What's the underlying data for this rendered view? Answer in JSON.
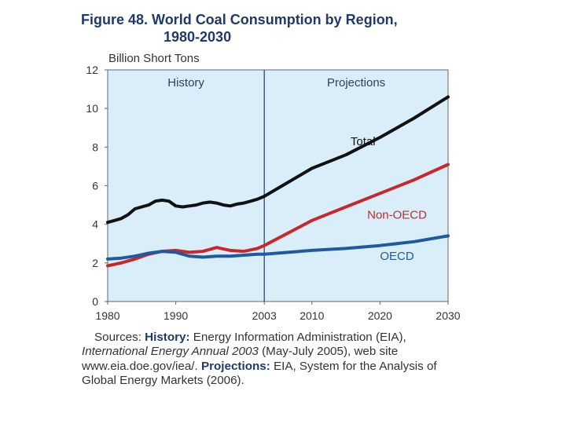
{
  "title_line1": "Figure 48.  World Coal Consumption by Region,",
  "title_line2": "1980-2030",
  "sources": {
    "label": "Sources:",
    "history_label": "History:",
    "history_text": "Energy Information Administration (EIA),",
    "publication": "International Energy Annual 2003",
    "publication_rest": "(May-July 2005), web site",
    "website": "www.eia.doe.gov/iea/.",
    "projections_label": "Projections:",
    "projections_text": "EIA, System for the Analysis of Global Energy Markets (2006)."
  },
  "chart_data": {
    "type": "line",
    "title": "World Coal Consumption by Region, 1980-2030",
    "ylabel": "Billion Short Tons",
    "xlabel": "",
    "xlim": [
      1980,
      2030
    ],
    "ylim": [
      0,
      12
    ],
    "yticks": [
      0,
      2,
      4,
      6,
      8,
      10,
      12
    ],
    "xticks": [
      1980,
      1990,
      2003,
      2010,
      2020,
      2030
    ],
    "divider_year": 2003,
    "regions": [
      {
        "label": "History",
        "from": 1980,
        "to": 2003
      },
      {
        "label": "Projections",
        "from": 2003,
        "to": 2030
      }
    ],
    "colors": {
      "background": "#d9eef9",
      "Total": "#111111",
      "Non-OECD": "#c8282b",
      "OECD": "#1f5aa0"
    },
    "series": [
      {
        "name": "Total",
        "x": [
          1980,
          1981,
          1982,
          1983,
          1984,
          1985,
          1986,
          1987,
          1988,
          1989,
          1990,
          1991,
          1992,
          1993,
          1994,
          1995,
          1996,
          1997,
          1998,
          1999,
          2000,
          2001,
          2002,
          2003,
          2010,
          2015,
          2020,
          2025,
          2030
        ],
        "values": [
          4.1,
          4.2,
          4.3,
          4.5,
          4.8,
          4.9,
          5.0,
          5.2,
          5.25,
          5.2,
          4.95,
          4.9,
          4.95,
          5.0,
          5.1,
          5.15,
          5.1,
          5.0,
          4.95,
          5.05,
          5.1,
          5.2,
          5.3,
          5.45,
          6.9,
          7.6,
          8.5,
          9.5,
          10.6
        ]
      },
      {
        "name": "Non-OECD",
        "x": [
          1980,
          1982,
          1984,
          1986,
          1988,
          1990,
          1992,
          1994,
          1996,
          1998,
          2000,
          2002,
          2003,
          2010,
          2015,
          2020,
          2025,
          2030
        ],
        "values": [
          1.85,
          2.0,
          2.2,
          2.45,
          2.6,
          2.65,
          2.55,
          2.6,
          2.8,
          2.65,
          2.6,
          2.75,
          2.9,
          4.2,
          4.9,
          5.6,
          6.3,
          7.1
        ]
      },
      {
        "name": "OECD",
        "x": [
          1980,
          1982,
          1984,
          1986,
          1988,
          1990,
          1992,
          1994,
          1996,
          1998,
          2000,
          2002,
          2003,
          2010,
          2015,
          2020,
          2025,
          2030
        ],
        "values": [
          2.2,
          2.25,
          2.35,
          2.5,
          2.6,
          2.55,
          2.35,
          2.3,
          2.35,
          2.35,
          2.4,
          2.45,
          2.45,
          2.65,
          2.75,
          2.9,
          3.1,
          3.4
        ]
      }
    ]
  }
}
